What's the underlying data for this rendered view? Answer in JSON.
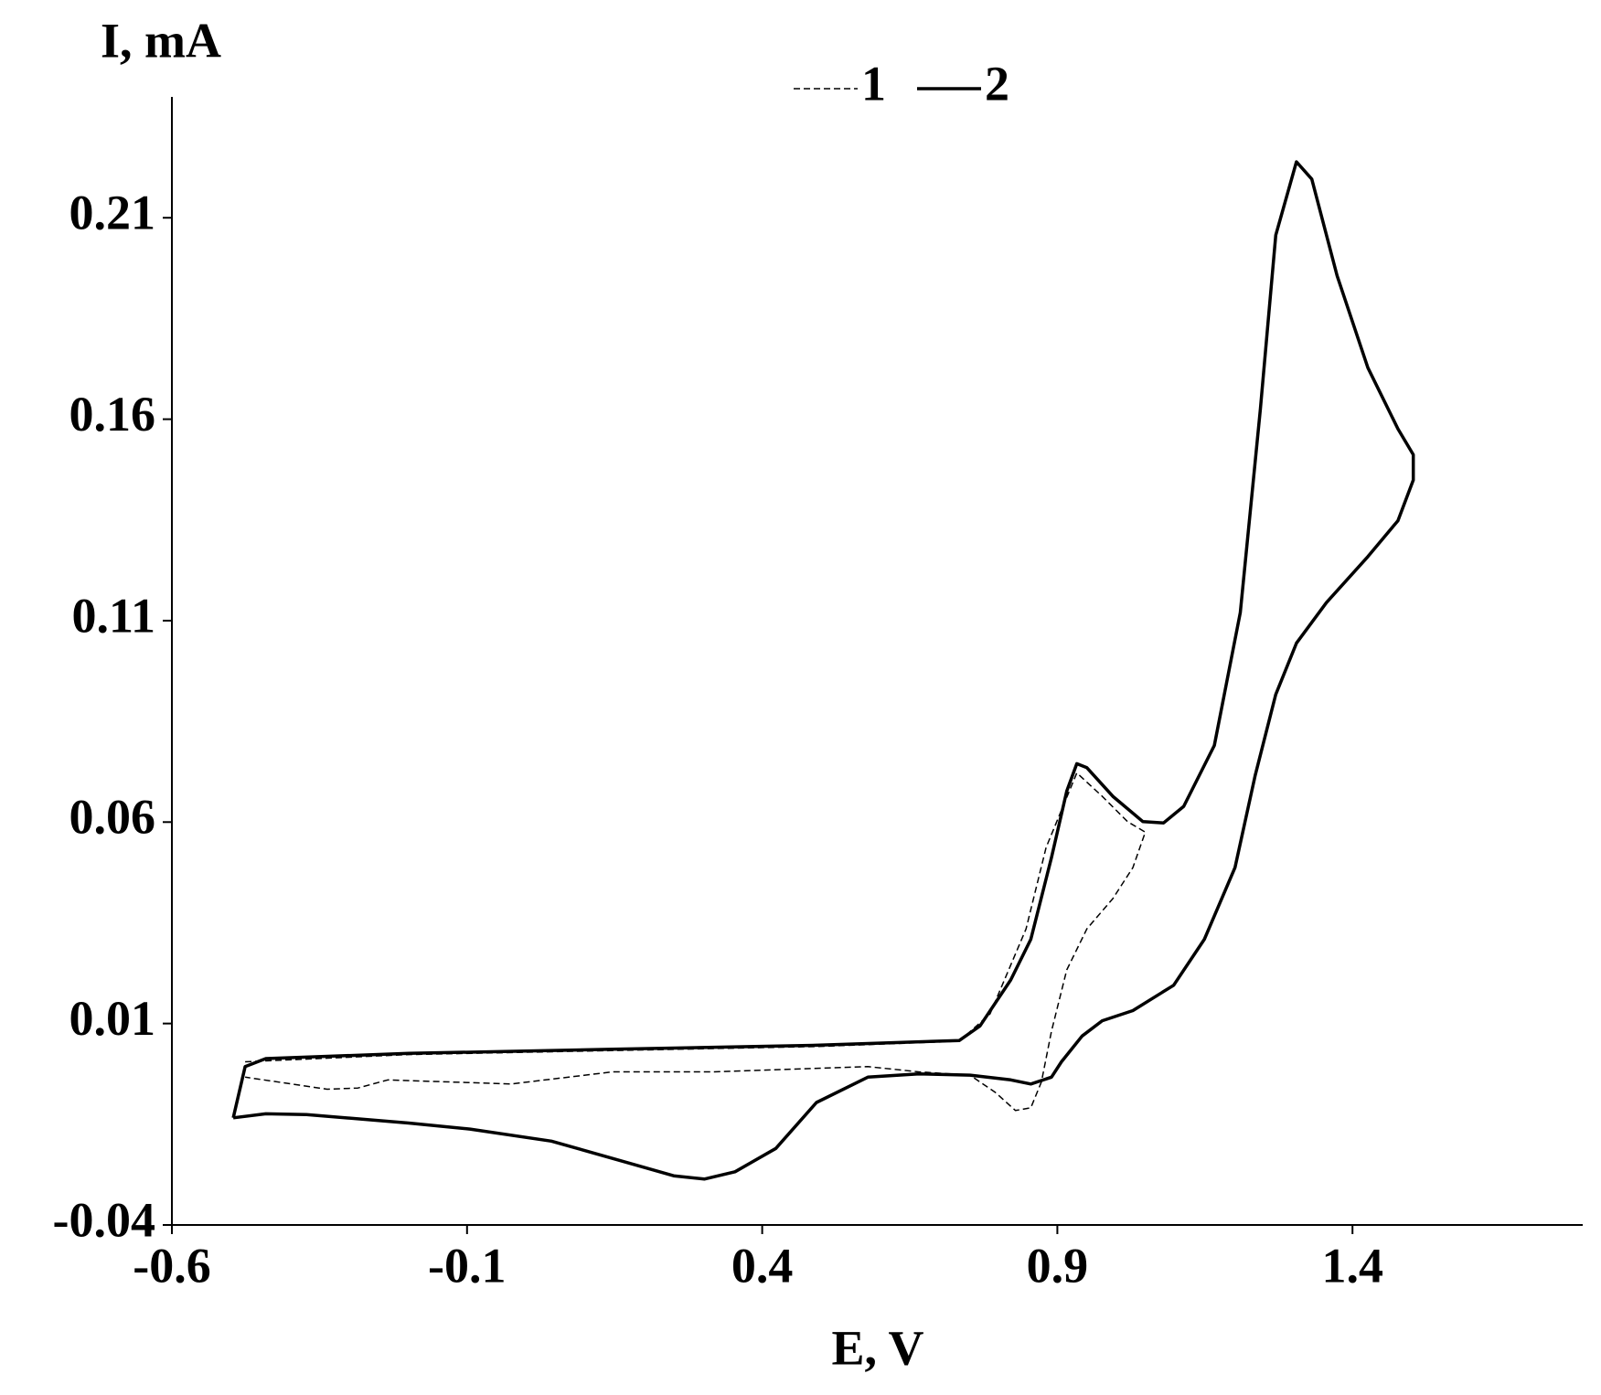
{
  "chart_data": {
    "type": "line",
    "xlabel": "E, V",
    "ylabel": "I, mA",
    "xlim": [
      -0.6,
      1.79
    ],
    "ylim": [
      -0.04,
      0.24
    ],
    "xticks": [
      -0.6,
      -0.1,
      0.4,
      0.9,
      1.4
    ],
    "yticks": [
      -0.04,
      0.01,
      0.06,
      0.11,
      0.16,
      0.21
    ],
    "grid": false,
    "legend": "top",
    "series": [
      {
        "name": "1",
        "color": "#000000",
        "linestyle": "dashed",
        "x": [
          -0.476,
          -0.199,
          0.492,
          0.734,
          0.786,
          0.847,
          0.881,
          0.933,
          0.976,
          1.019,
          1.049,
          1.028,
          0.994,
          0.95,
          0.916,
          0.89,
          0.873,
          0.855,
          0.829,
          0.795,
          0.752,
          0.665,
          0.579,
          0.319,
          0.147,
          -0.026,
          -0.234,
          -0.285,
          -0.337,
          -0.476
        ],
        "values": [
          0.0005,
          0.0023,
          0.0043,
          0.0056,
          0.0124,
          0.0335,
          0.0537,
          0.0722,
          0.0664,
          0.0601,
          0.0575,
          0.0487,
          0.041,
          0.0335,
          0.0233,
          0.0081,
          -0.0045,
          -0.0109,
          -0.0116,
          -0.0071,
          -0.0028,
          -0.002,
          -0.0007,
          -0.002,
          -0.002,
          -0.005,
          -0.004,
          -0.006,
          -0.0063,
          -0.0033
        ]
      },
      {
        "name": "2",
        "color": "#000000",
        "linestyle": "solid",
        "x": [
          -0.496,
          -0.476,
          -0.441,
          -0.199,
          0.147,
          0.492,
          0.734,
          0.769,
          0.821,
          0.855,
          0.89,
          0.916,
          0.933,
          0.95,
          0.994,
          1.045,
          1.08,
          1.114,
          1.166,
          1.21,
          1.244,
          1.27,
          1.305,
          1.331,
          1.374,
          1.426,
          1.477,
          1.503,
          1.503,
          1.477,
          1.426,
          1.356,
          1.305,
          1.27,
          1.235,
          1.201,
          1.149,
          1.097,
          1.028,
          0.976,
          0.942,
          0.907,
          0.89,
          0.855,
          0.821,
          0.752,
          0.665,
          0.579,
          0.492,
          0.423,
          0.354,
          0.302,
          0.25,
          0.147,
          0.043,
          -0.095,
          -0.199,
          -0.372,
          -0.441,
          -0.496
        ],
        "values": [
          -0.0134,
          -0.0007,
          0.0013,
          0.0026,
          0.0036,
          0.0046,
          0.0058,
          0.0094,
          0.0208,
          0.0309,
          0.0512,
          0.0677,
          0.0745,
          0.0735,
          0.0664,
          0.0601,
          0.0598,
          0.0639,
          0.079,
          0.112,
          0.1626,
          0.2057,
          0.2239,
          0.2196,
          0.1956,
          0.1728,
          0.1576,
          0.1512,
          0.1449,
          0.1348,
          0.1259,
          0.1145,
          0.1044,
          0.0917,
          0.0715,
          0.0487,
          0.0309,
          0.0195,
          0.0132,
          0.0107,
          0.0069,
          0.0005,
          -0.0033,
          -0.005,
          -0.004,
          -0.0028,
          -0.0025,
          -0.0033,
          -0.0096,
          -0.021,
          -0.0268,
          -0.0286,
          -0.0278,
          -0.0235,
          -0.0192,
          -0.0162,
          -0.0147,
          -0.0126,
          -0.0124,
          -0.0134
        ]
      }
    ]
  }
}
